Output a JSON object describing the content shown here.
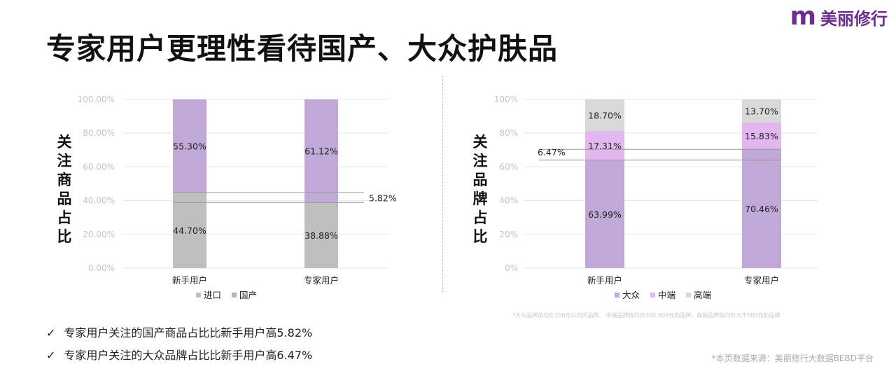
{
  "logo": {
    "mark": "m",
    "text": "美丽修行"
  },
  "title": "专家用户更理性看待国产、大众护肤品",
  "charts": {
    "left": {
      "ylabel": [
        "关",
        "注",
        "商",
        "品",
        "占",
        "比"
      ]
    },
    "right": {
      "ylabel": [
        "关",
        "注",
        "品",
        "牌",
        "占",
        "比"
      ]
    }
  },
  "notes": [
    {
      "check": "✓",
      "text": "专家用户关注的国产商品占比比新手用户高5.82%"
    },
    {
      "check": "✓",
      "text": "专家用户关注的大众品牌占比比新手用户高6.47%"
    }
  ],
  "footnote": "*大众品牌指均价300元以内的品牌，   中端品牌指均价300-500元的品牌，高端品牌指均价大于500元的品牌",
  "source": "*本页数据来源：美丽修行大数据BEBD平台",
  "chart_data": [
    {
      "type": "bar",
      "stacked": true,
      "categories": [
        "新手用户",
        "专家用户"
      ],
      "series": [
        {
          "name": "进口",
          "values": [
            44.7,
            38.88
          ],
          "labels": [
            "44.70%",
            "38.88%"
          ],
          "color": "#bfbfbf"
        },
        {
          "name": "国产",
          "values": [
            55.3,
            61.12
          ],
          "labels": [
            "55.30%",
            "61.12%"
          ],
          "color": "#c0a9d7"
        }
      ],
      "ylabel": "关注商品占比",
      "ylim": [
        0,
        100
      ],
      "yticks": [
        "0.00%",
        "20.00%",
        "40.00%",
        "60.00%",
        "80.00%",
        "100.00%"
      ],
      "annotation": "5.82%",
      "legend": "bottom",
      "grid": true
    },
    {
      "type": "bar",
      "stacked": true,
      "categories": [
        "新手用户",
        "专家用户"
      ],
      "series": [
        {
          "name": "大众",
          "values": [
            63.99,
            70.46
          ],
          "labels": [
            "63.99%",
            "70.46%"
          ],
          "color": "#c0a9d7"
        },
        {
          "name": "中端",
          "values": [
            17.31,
            15.83
          ],
          "labels": [
            "17.31%",
            "15.83%"
          ],
          "color": "#e2b6ee"
        },
        {
          "name": "高端",
          "values": [
            18.7,
            13.7
          ],
          "labels": [
            "18.70%",
            "13.70%"
          ],
          "color": "#d9d9d9"
        }
      ],
      "ylabel": "关注品牌占比",
      "ylim": [
        0,
        100
      ],
      "yticks": [
        "0%",
        "20%",
        "40%",
        "60%",
        "80%",
        "100%"
      ],
      "annotation": "6.47%",
      "legend": "bottom",
      "grid": true
    }
  ]
}
